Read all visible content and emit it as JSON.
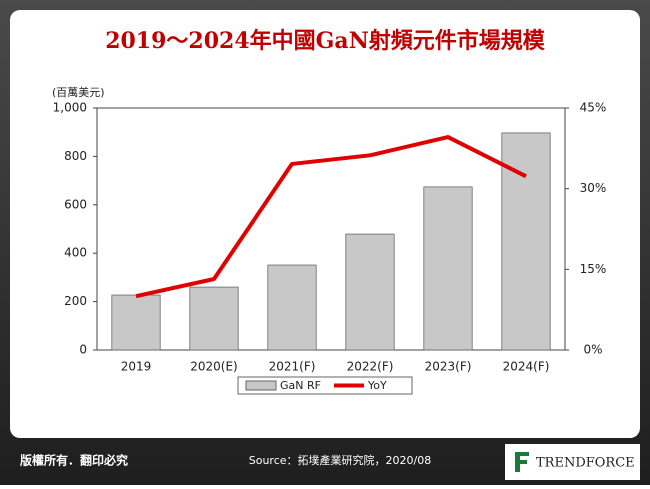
{
  "chart_data": {
    "type": "bar_line",
    "title": "2019～2024年中國GaN射頻元件市場規模",
    "y_label": "(百萬美元)",
    "categories": [
      "2019",
      "2020(E)",
      "2021(F)",
      "2022(F)",
      "2023(F)",
      "2024(F)"
    ],
    "series": [
      {
        "name": "GaN RF",
        "type": "bar",
        "color": "#c8c8c8",
        "values": [
          227,
          260,
          351,
          479,
          674,
          897
        ]
      },
      {
        "name": "YoY",
        "type": "line",
        "axis": "y2",
        "color": "#e00000",
        "values": [
          10.0,
          13.2,
          34.6,
          36.2,
          39.6,
          32.3
        ]
      }
    ],
    "ylim": [
      0,
      1000
    ],
    "yticks": [
      0,
      200,
      400,
      600,
      800,
      {
        "value": 1000,
        "label": "1,000"
      }
    ],
    "y2lim": [
      0,
      45
    ],
    "y2ticks": [
      {
        "value": 0,
        "label": "0%"
      },
      {
        "value": 15,
        "label": "15%"
      },
      {
        "value": 30,
        "label": "30%"
      },
      {
        "value": 45,
        "label": "45%"
      }
    ],
    "legend": "bottom"
  },
  "footer": {
    "copyright": "版權所有．翻印必究",
    "source": "Source：拓墣產業研究院，2020/08",
    "brand": "TRENDFORCE"
  }
}
